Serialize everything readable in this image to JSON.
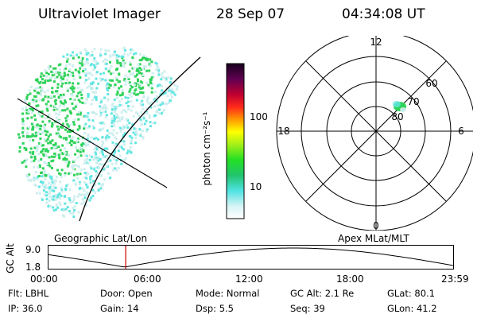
{
  "header": {
    "instrument": "Ultraviolet Imager",
    "date": "28 Sep 07",
    "time": "04:34:08 UT"
  },
  "colorbar": {
    "unit_label": "photon cm⁻²s⁻¹",
    "ticks": [
      "100",
      "10"
    ]
  },
  "polar_plot": {
    "mlt_labels": {
      "top": "12",
      "bottom": "0",
      "left": "18",
      "right": "6"
    },
    "mlat_labels": [
      "60",
      "70",
      "80"
    ]
  },
  "timeline": {
    "y_axis_label": "GC Alt",
    "y_ticks": [
      "9.0",
      "1.8"
    ],
    "left_caption": "Geographic Lat/Lon",
    "right_caption": "Apex MLat/MLT",
    "x_ticks": [
      "00:00",
      "06:00",
      "12:00",
      "18:00",
      "23:59"
    ],
    "current_time_marker_hours": 4.57
  },
  "footer": {
    "row1": [
      {
        "label": "Flt:",
        "value": "LBHL"
      },
      {
        "label": "Door:",
        "value": "Open"
      },
      {
        "label": "Mode:",
        "value": "Normal"
      },
      {
        "label": "GC Alt:",
        "value": "2.1 Re"
      },
      {
        "label": "GLat:",
        "value": "80.1"
      }
    ],
    "row2": [
      {
        "label": "IP:",
        "value": "36.0"
      },
      {
        "label": "Gain:",
        "value": "14"
      },
      {
        "label": "Dsp:",
        "value": "5.5"
      },
      {
        "label": "Seq:",
        "value": "39"
      },
      {
        "label": "GLon:",
        "value": "41.2"
      }
    ]
  },
  "colors": {
    "aurora_green": "#2fd35a",
    "aurora_cyan": "#63e6e2",
    "aurora_pale": "#cfeeee",
    "marker_red": "#d40000"
  }
}
